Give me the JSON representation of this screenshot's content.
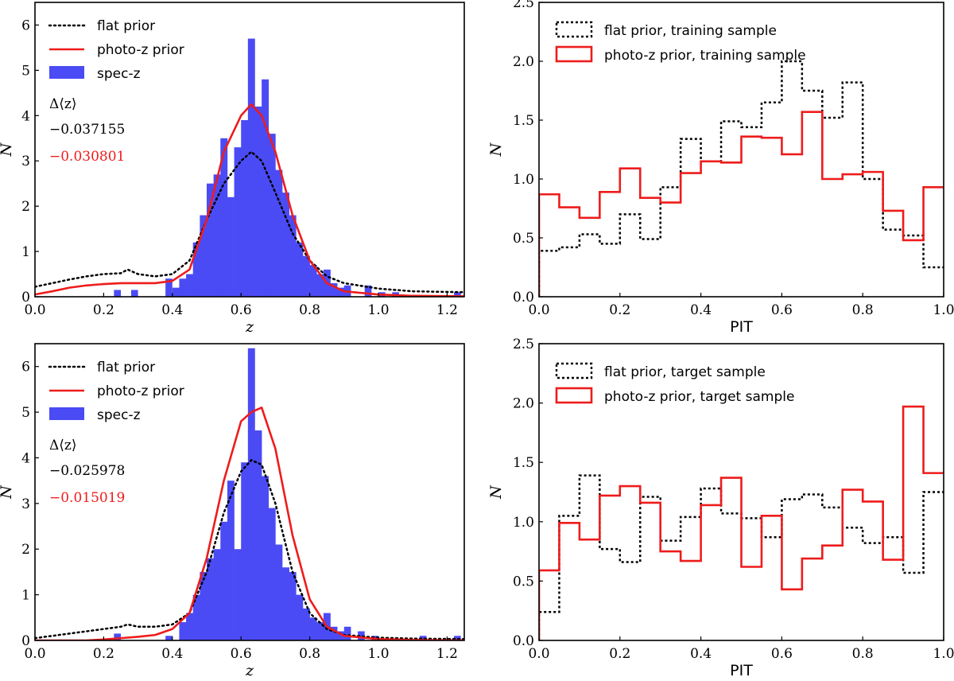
{
  "chart_data": [
    {
      "id": "top-left",
      "type": "histogram+line",
      "xlabel": "z",
      "ylabel": "N",
      "xlim": [
        0.0,
        1.25
      ],
      "ylim": [
        0,
        6.5
      ],
      "xticks": [
        "0.0",
        "0.2",
        "0.4",
        "0.6",
        "0.8",
        "1.0",
        "1.2"
      ],
      "yticks": [
        "0",
        "1",
        "2",
        "3",
        "4",
        "5",
        "6"
      ],
      "legend": [
        "flat prior",
        "photo-z prior",
        "spec-z"
      ],
      "colors": {
        "flat": "#000000",
        "photo": "#ee1c1c",
        "spec": "#4b4bf5"
      },
      "delta_label": "Δ⟨z⟩",
      "delta_flat": "−0.037155",
      "delta_photo": "−0.030801",
      "hist": {
        "edges": [
          0.4,
          0.42,
          0.44,
          0.46,
          0.48,
          0.5,
          0.52,
          0.54,
          0.56,
          0.58,
          0.6,
          0.62,
          0.64,
          0.66,
          0.68,
          0.7,
          0.72,
          0.74,
          0.76,
          0.78,
          0.8,
          0.82,
          0.84,
          0.86,
          0.88,
          0.9
        ],
        "counts": [
          0.2,
          0.4,
          0.5,
          1.2,
          1.8,
          2.5,
          2.7,
          3.5,
          2.2,
          3.3,
          3.9,
          5.7,
          4.2,
          4.8,
          3.6,
          2.8,
          2.3,
          1.8,
          1.2,
          0.9,
          0.7,
          0.5,
          0.6,
          0.3,
          0.2
        ],
        "extra": [
          {
            "x0": 0.23,
            "x1": 0.25,
            "v": 0.15
          },
          {
            "x0": 0.28,
            "x1": 0.3,
            "v": 0.15
          },
          {
            "x0": 0.38,
            "x1": 0.4,
            "v": 0.4
          },
          {
            "x0": 0.9,
            "x1": 0.92,
            "v": 0.25
          },
          {
            "x0": 0.96,
            "x1": 0.98,
            "v": 0.25
          },
          {
            "x0": 1.0,
            "x1": 1.02,
            "v": 0.1
          },
          {
            "x0": 1.04,
            "x1": 1.06,
            "v": 0.1
          },
          {
            "x0": 1.22,
            "x1": 1.24,
            "v": 0.1
          }
        ]
      },
      "flat_curve": {
        "x": [
          0.0,
          0.05,
          0.1,
          0.15,
          0.2,
          0.25,
          0.27,
          0.3,
          0.35,
          0.4,
          0.45,
          0.5,
          0.55,
          0.6,
          0.63,
          0.66,
          0.7,
          0.75,
          0.8,
          0.85,
          0.9,
          1.0,
          1.1,
          1.25
        ],
        "y": [
          0.22,
          0.3,
          0.38,
          0.45,
          0.5,
          0.52,
          0.6,
          0.5,
          0.45,
          0.5,
          0.8,
          1.7,
          2.5,
          3.0,
          3.2,
          3.0,
          2.3,
          1.4,
          0.8,
          0.45,
          0.3,
          0.18,
          0.12,
          0.1
        ]
      },
      "photo_curve": {
        "x": [
          0.0,
          0.05,
          0.1,
          0.15,
          0.2,
          0.25,
          0.3,
          0.35,
          0.4,
          0.45,
          0.5,
          0.55,
          0.6,
          0.63,
          0.66,
          0.7,
          0.75,
          0.8,
          0.85,
          0.9,
          1.0,
          1.1,
          1.25
        ],
        "y": [
          0.05,
          0.12,
          0.2,
          0.25,
          0.28,
          0.3,
          0.3,
          0.3,
          0.35,
          0.6,
          1.7,
          3.2,
          4.0,
          4.25,
          4.0,
          3.2,
          1.8,
          0.8,
          0.3,
          0.12,
          0.05,
          0.02,
          0.01
        ]
      }
    },
    {
      "id": "top-right",
      "type": "step",
      "xlabel": "PIT",
      "ylabel": "N",
      "xlim": [
        0.0,
        1.0
      ],
      "ylim": [
        0.0,
        2.5
      ],
      "xticks": [
        "0.0",
        "0.2",
        "0.4",
        "0.6",
        "0.8",
        "1.0"
      ],
      "yticks": [
        "0.0",
        "0.5",
        "1.0",
        "1.5",
        "2.0",
        "2.5"
      ],
      "legend": [
        "flat prior, training sample",
        "photo-z prior, training sample"
      ],
      "bins": [
        0.0,
        0.05,
        0.1,
        0.15,
        0.2,
        0.25,
        0.3,
        0.35,
        0.4,
        0.45,
        0.5,
        0.55,
        0.6,
        0.65,
        0.7,
        0.75,
        0.8,
        0.85,
        0.9,
        0.95,
        1.0
      ],
      "flat_values": [
        0.39,
        0.42,
        0.53,
        0.45,
        0.7,
        0.49,
        0.93,
        1.34,
        1.15,
        1.49,
        1.44,
        1.65,
        2.0,
        1.75,
        1.52,
        1.82,
        1.0,
        0.57,
        0.52,
        0.25
      ],
      "photo_values": [
        0.87,
        0.76,
        0.67,
        0.89,
        1.09,
        0.84,
        0.8,
        1.05,
        1.15,
        1.14,
        1.36,
        1.35,
        1.21,
        1.57,
        1.0,
        1.04,
        1.06,
        0.73,
        0.48,
        0.93
      ]
    },
    {
      "id": "bottom-left",
      "type": "histogram+line",
      "xlabel": "z",
      "ylabel": "N",
      "xlim": [
        0.0,
        1.25
      ],
      "ylim": [
        0,
        6.5
      ],
      "xticks": [
        "0.0",
        "0.2",
        "0.4",
        "0.6",
        "0.8",
        "1.0",
        "1.2"
      ],
      "yticks": [
        "0",
        "1",
        "2",
        "3",
        "4",
        "5",
        "6"
      ],
      "legend": [
        "flat prior",
        "photo-z prior",
        "spec-z"
      ],
      "delta_label": "Δ⟨z⟩",
      "delta_flat": "−0.025978",
      "delta_photo": "−0.015019",
      "hist": {
        "edges": [
          0.42,
          0.44,
          0.46,
          0.48,
          0.5,
          0.52,
          0.54,
          0.56,
          0.58,
          0.6,
          0.62,
          0.64,
          0.66,
          0.68,
          0.7,
          0.72,
          0.74,
          0.76,
          0.78,
          0.8,
          0.82,
          0.84,
          0.86,
          0.88,
          0.9
        ],
        "counts": [
          0.4,
          0.6,
          1.0,
          1.5,
          1.8,
          2.0,
          2.6,
          3.5,
          2.0,
          3.9,
          6.4,
          4.6,
          3.6,
          2.9,
          2.1,
          1.6,
          1.5,
          1.0,
          0.7,
          0.5,
          0.4,
          0.6,
          0.3,
          0.2
        ],
        "extra": [
          {
            "x0": 0.23,
            "x1": 0.25,
            "v": 0.15
          },
          {
            "x0": 0.38,
            "x1": 0.4,
            "v": 0.1
          },
          {
            "x0": 0.9,
            "x1": 0.92,
            "v": 0.3
          },
          {
            "x0": 0.94,
            "x1": 0.96,
            "v": 0.2
          },
          {
            "x0": 0.98,
            "x1": 1.0,
            "v": 0.1
          },
          {
            "x0": 1.12,
            "x1": 1.14,
            "v": 0.1
          },
          {
            "x0": 1.22,
            "x1": 1.24,
            "v": 0.1
          }
        ]
      },
      "flat_curve": {
        "x": [
          0.0,
          0.05,
          0.1,
          0.15,
          0.2,
          0.25,
          0.27,
          0.3,
          0.35,
          0.4,
          0.45,
          0.5,
          0.55,
          0.6,
          0.63,
          0.66,
          0.7,
          0.75,
          0.8,
          0.85,
          0.9,
          1.0,
          1.1,
          1.25
        ],
        "y": [
          0.05,
          0.1,
          0.15,
          0.2,
          0.25,
          0.3,
          0.35,
          0.3,
          0.3,
          0.35,
          0.6,
          1.5,
          2.8,
          3.7,
          3.95,
          3.85,
          3.0,
          1.5,
          0.6,
          0.25,
          0.12,
          0.06,
          0.04,
          0.03
        ]
      },
      "photo_curve": {
        "x": [
          0.0,
          0.05,
          0.1,
          0.15,
          0.2,
          0.25,
          0.3,
          0.35,
          0.4,
          0.45,
          0.5,
          0.55,
          0.6,
          0.63,
          0.66,
          0.7,
          0.75,
          0.8,
          0.85,
          0.9,
          1.0,
          1.1,
          1.25
        ],
        "y": [
          0.0,
          0.0,
          0.0,
          0.0,
          0.02,
          0.05,
          0.08,
          0.12,
          0.25,
          0.6,
          1.8,
          3.5,
          4.8,
          5.0,
          5.1,
          4.2,
          2.3,
          0.9,
          0.3,
          0.1,
          0.03,
          0.01,
          0.0
        ]
      }
    },
    {
      "id": "bottom-right",
      "type": "step",
      "xlabel": "PIT",
      "ylabel": "N",
      "xlim": [
        0.0,
        1.0
      ],
      "ylim": [
        0.0,
        2.5
      ],
      "xticks": [
        "0.0",
        "0.2",
        "0.4",
        "0.6",
        "0.8",
        "1.0"
      ],
      "yticks": [
        "0.0",
        "0.5",
        "1.0",
        "1.5",
        "2.0",
        "2.5"
      ],
      "legend": [
        "flat prior, target sample",
        "photo-z prior, target sample"
      ],
      "bins": [
        0.0,
        0.05,
        0.1,
        0.15,
        0.2,
        0.25,
        0.3,
        0.35,
        0.4,
        0.45,
        0.5,
        0.55,
        0.6,
        0.65,
        0.7,
        0.75,
        0.8,
        0.85,
        0.9,
        0.95,
        1.0
      ],
      "flat_values": [
        0.24,
        1.05,
        1.39,
        0.77,
        0.66,
        1.21,
        0.84,
        1.04,
        1.28,
        1.07,
        1.03,
        0.87,
        1.19,
        1.23,
        1.12,
        0.95,
        0.82,
        0.87,
        0.57,
        1.25
      ],
      "photo_values": [
        0.59,
        0.99,
        0.85,
        1.22,
        1.3,
        1.16,
        0.75,
        0.67,
        1.14,
        1.37,
        0.62,
        1.05,
        0.43,
        0.69,
        0.8,
        1.27,
        1.17,
        0.68,
        1.97,
        1.41
      ]
    }
  ]
}
